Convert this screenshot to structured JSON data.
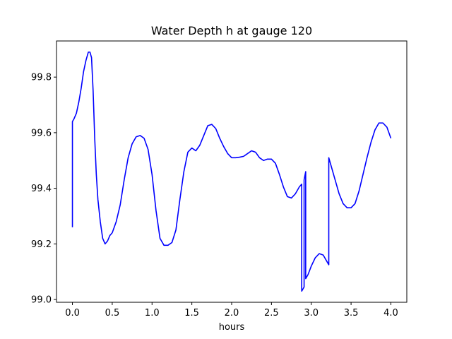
{
  "chart_data": {
    "type": "line",
    "title": "Water Depth h at gauge 120",
    "xlabel": "hours",
    "ylabel": "",
    "xlim": [
      -0.2,
      4.2
    ],
    "ylim": [
      98.99,
      99.93
    ],
    "x_ticks": [
      0.0,
      0.5,
      1.0,
      1.5,
      2.0,
      2.5,
      3.0,
      3.5,
      4.0
    ],
    "x_tick_labels": [
      "0.0",
      "0.5",
      "1.0",
      "1.5",
      "2.0",
      "2.5",
      "3.0",
      "3.5",
      "4.0"
    ],
    "y_ticks": [
      99.0,
      99.2,
      99.4,
      99.6,
      99.8
    ],
    "y_tick_labels": [
      "99.0",
      "99.2",
      "99.4",
      "99.6",
      "99.8"
    ],
    "grid": false,
    "series": [
      {
        "color": "#0000ff",
        "x": [
          0.0,
          0.0,
          0.02,
          0.05,
          0.08,
          0.11,
          0.14,
          0.17,
          0.2,
          0.22,
          0.24,
          0.26,
          0.28,
          0.3,
          0.32,
          0.35,
          0.38,
          0.41,
          0.44,
          0.47,
          0.5,
          0.55,
          0.6,
          0.65,
          0.7,
          0.75,
          0.8,
          0.85,
          0.9,
          0.95,
          1.0,
          1.05,
          1.1,
          1.15,
          1.2,
          1.25,
          1.3,
          1.35,
          1.4,
          1.45,
          1.5,
          1.55,
          1.6,
          1.65,
          1.7,
          1.75,
          1.8,
          1.85,
          1.9,
          1.95,
          2.0,
          2.05,
          2.1,
          2.15,
          2.2,
          2.25,
          2.3,
          2.35,
          2.4,
          2.45,
          2.5,
          2.55,
          2.6,
          2.65,
          2.7,
          2.75,
          2.8,
          2.85,
          2.88,
          2.88,
          2.91,
          2.91,
          2.93,
          2.93,
          2.96,
          3.0,
          3.05,
          3.1,
          3.15,
          3.2,
          3.22,
          3.22,
          3.25,
          3.3,
          3.35,
          3.4,
          3.45,
          3.5,
          3.55,
          3.6,
          3.65,
          3.7,
          3.75,
          3.8,
          3.85,
          3.9,
          3.95,
          4.0
        ],
        "y": [
          99.26,
          99.64,
          99.65,
          99.67,
          99.71,
          99.76,
          99.82,
          99.86,
          99.89,
          99.89,
          99.87,
          99.75,
          99.58,
          99.45,
          99.36,
          99.28,
          99.22,
          99.2,
          99.21,
          99.23,
          99.24,
          99.28,
          99.34,
          99.43,
          99.51,
          99.56,
          99.585,
          99.59,
          99.58,
          99.54,
          99.45,
          99.32,
          99.22,
          99.195,
          99.195,
          99.205,
          99.25,
          99.36,
          99.46,
          99.53,
          99.545,
          99.535,
          99.555,
          99.59,
          99.625,
          99.63,
          99.615,
          99.58,
          99.55,
          99.525,
          99.51,
          99.51,
          99.512,
          99.515,
          99.525,
          99.535,
          99.53,
          99.51,
          99.5,
          99.505,
          99.505,
          99.49,
          99.45,
          99.405,
          99.37,
          99.365,
          99.38,
          99.405,
          99.415,
          99.03,
          99.045,
          99.43,
          99.46,
          99.075,
          99.09,
          99.12,
          99.15,
          99.165,
          99.16,
          99.135,
          99.125,
          99.51,
          99.48,
          99.43,
          99.38,
          99.345,
          99.33,
          99.33,
          99.345,
          99.39,
          99.45,
          99.51,
          99.565,
          99.61,
          99.635,
          99.635,
          99.62,
          99.58
        ]
      }
    ]
  }
}
